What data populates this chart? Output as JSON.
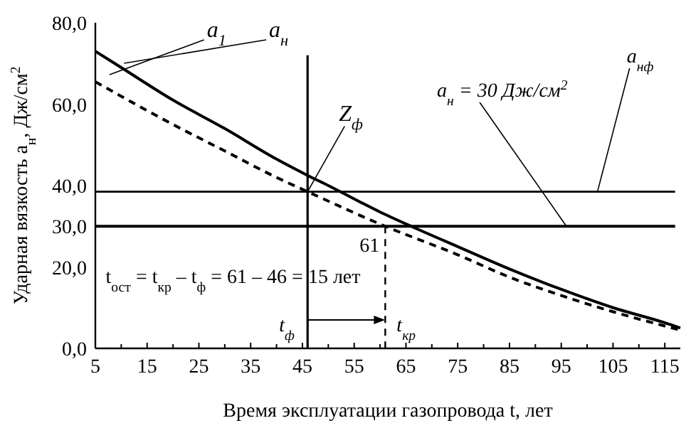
{
  "chart_data": {
    "type": "line",
    "xlabel": "Время эксплуатации газопровода t, лет",
    "ylabel": "Ударная вязкость a$_{н}$, Дж/см$^{2}$",
    "xlim": [
      5,
      118
    ],
    "xticks": [
      5,
      15,
      25,
      35,
      45,
      55,
      65,
      75,
      85,
      95,
      105,
      115
    ],
    "ylim": [
      0,
      80
    ],
    "yticks": [
      {
        "value": 0,
        "label": "0,0"
      },
      {
        "value": 20,
        "label": "20,0"
      },
      {
        "value": 30,
        "label": "30,0"
      },
      {
        "value": 40,
        "label": "40,0"
      },
      {
        "value": 60,
        "label": "60,0"
      },
      {
        "value": 80,
        "label": "80,0"
      }
    ],
    "grid": false,
    "marker": "none",
    "series": [
      {
        "name": "a$_{1}$",
        "color": "#000000",
        "line_style": "dashed",
        "x": [
          5,
          20,
          30,
          40,
          46,
          61,
          75,
          85,
          95,
          105,
          115,
          118
        ],
        "values": [
          65.5,
          55,
          48.5,
          42,
          38.5,
          30,
          23,
          17.5,
          13,
          9,
          5.5,
          4.5
        ]
      },
      {
        "name": "a$_{н}$",
        "color": "#000000",
        "line_style": "solid",
        "x": [
          5,
          10,
          20,
          30,
          40,
          46,
          50,
          60,
          66,
          75,
          85,
          95,
          105,
          115,
          118
        ],
        "values": [
          73,
          69,
          61,
          54,
          46.5,
          42.5,
          40,
          33.5,
          30,
          25,
          19.5,
          14.5,
          10,
          6.3,
          5
        ]
      }
    ],
    "ref_lines": [
      {
        "axis": "y",
        "value": 38.5,
        "label": "a$_{нф}$",
        "color": "#000000",
        "line_style": "solid"
      },
      {
        "axis": "y",
        "value": 30,
        "label": "a$_{н}$ = 30 Дж/см$^{2}$",
        "color": "#000000",
        "line_style": "solid"
      },
      {
        "axis": "x",
        "value": 46,
        "label": "t$_{ф}$",
        "color": "#000000",
        "line_style": "solid"
      },
      {
        "axis": "x",
        "value": 61,
        "label": "t$_{кр}$",
        "color": "#000000",
        "line_style": "dashed"
      }
    ],
    "annotations": [
      {
        "text": "Z$_{ф}$",
        "x": 46,
        "y": 38.5
      },
      {
        "text": "61",
        "x": 61,
        "y": 30
      },
      "t$_{ост}$ = t$_{кр}$ – t$_{ф}$ = 61 – 46 = 15 лет"
    ]
  }
}
